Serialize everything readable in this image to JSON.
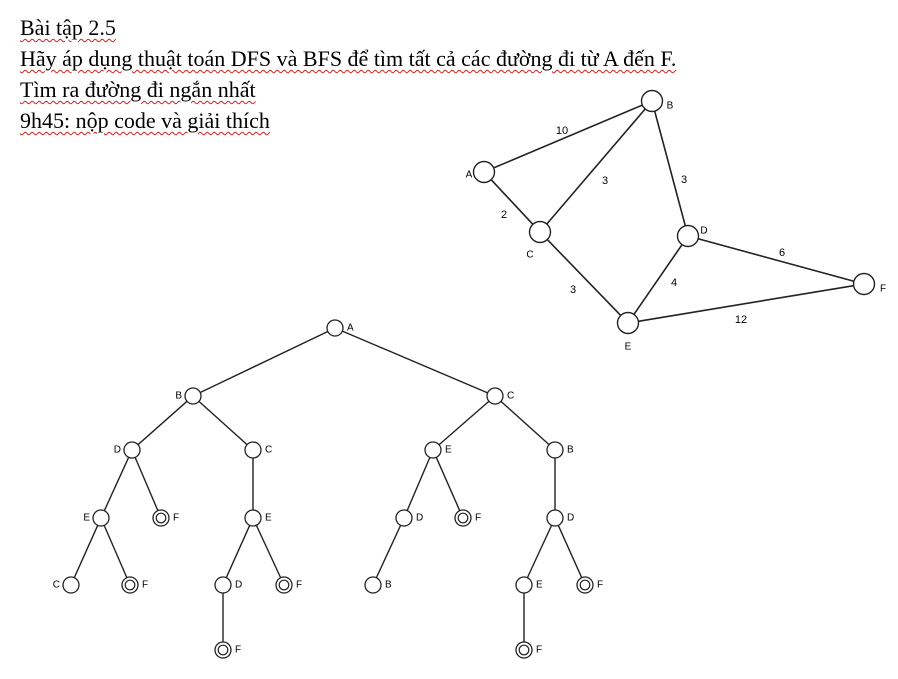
{
  "text": {
    "title": "Bài tập 2.5",
    "line1": "Hãy áp dụng thuật toán DFS và BFS để tìm tất cả các đường đi từ  A đến F.",
    "line2": "Tìm ra đường đi ngắn nhất",
    "line3": "9h45: nộp code và giải thích"
  },
  "graph": {
    "nodes": [
      "A",
      "B",
      "C",
      "D",
      "E",
      "F"
    ],
    "edges": [
      {
        "from": "A",
        "to": "B",
        "weight": "10"
      },
      {
        "from": "A",
        "to": "C",
        "weight": "2"
      },
      {
        "from": "C",
        "to": "B",
        "weight": "3"
      },
      {
        "from": "B",
        "to": "D",
        "weight": "3"
      },
      {
        "from": "C",
        "to": "E",
        "weight": "3"
      },
      {
        "from": "E",
        "to": "D",
        "weight": "4"
      },
      {
        "from": "D",
        "to": "F",
        "weight": "6"
      },
      {
        "from": "E",
        "to": "F",
        "weight": "12"
      }
    ]
  },
  "tree": {
    "root": {
      "label": "A",
      "children": [
        {
          "label": "B",
          "children": [
            {
              "label": "D",
              "children": [
                {
                  "label": "E",
                  "children": [
                    {
                      "label": "C",
                      "children": []
                    },
                    {
                      "label": "F",
                      "goal": true,
                      "children": []
                    }
                  ]
                },
                {
                  "label": "F",
                  "goal": true,
                  "children": []
                }
              ]
            },
            {
              "label": "C",
              "children": [
                {
                  "label": "E",
                  "children": [
                    {
                      "label": "D",
                      "children": [
                        {
                          "label": "F",
                          "goal": true,
                          "children": []
                        }
                      ]
                    },
                    {
                      "label": "F",
                      "goal": true,
                      "children": []
                    }
                  ]
                }
              ]
            }
          ]
        },
        {
          "label": "C",
          "children": [
            {
              "label": "E",
              "children": [
                {
                  "label": "D",
                  "children": [
                    {
                      "label": "B",
                      "children": []
                    }
                  ]
                },
                {
                  "label": "F",
                  "goal": true,
                  "children": []
                }
              ]
            },
            {
              "label": "B",
              "children": [
                {
                  "label": "D",
                  "children": [
                    {
                      "label": "E",
                      "children": [
                        {
                          "label": "F",
                          "goal": true,
                          "children": []
                        }
                      ]
                    },
                    {
                      "label": "F",
                      "goal": true,
                      "children": []
                    }
                  ]
                }
              ]
            }
          ]
        }
      ]
    }
  }
}
